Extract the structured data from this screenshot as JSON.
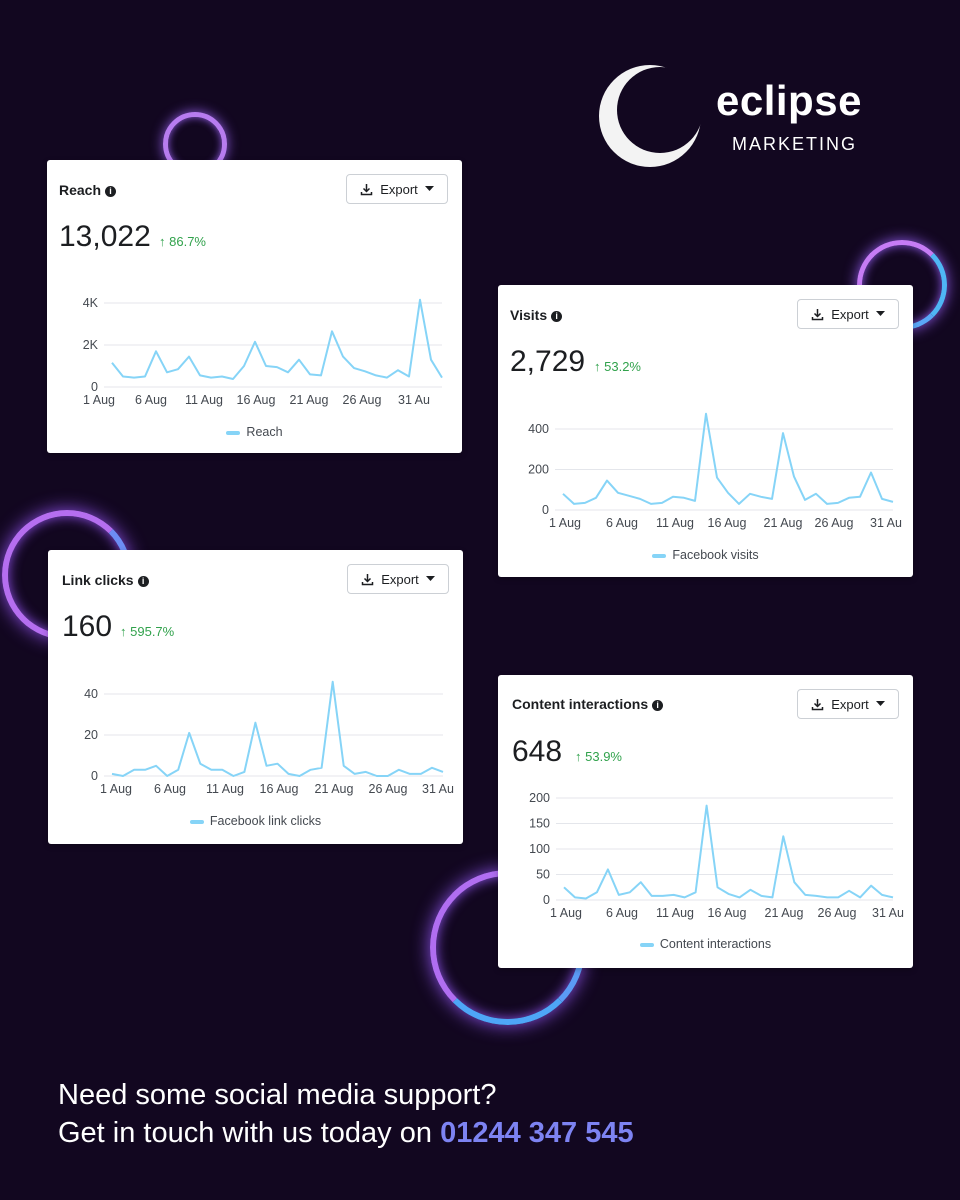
{
  "brand": {
    "name": "eclipse",
    "tagline": "MARKETING"
  },
  "export_label": "Export",
  "colors": {
    "line": "#86d4f7",
    "positive": "#31a24c",
    "phone": "#7d83f2",
    "background": "#120720"
  },
  "x_ticks": [
    "1 Aug",
    "6 Aug",
    "11 Aug",
    "16 Aug",
    "21 Aug",
    "26 Aug",
    "31 Au"
  ],
  "cards": {
    "reach": {
      "title": "Reach",
      "value": "13,022",
      "delta": "86.7%",
      "legend": "Reach"
    },
    "visits": {
      "title": "Visits",
      "value": "2,729",
      "delta": "53.2%",
      "legend": "Facebook visits"
    },
    "link_clicks": {
      "title": "Link clicks",
      "value": "160",
      "delta": "595.7%",
      "legend": "Facebook link clicks"
    },
    "content_interactions": {
      "title": "Content interactions",
      "value": "648",
      "delta": "53.9%",
      "legend": "Content interactions"
    }
  },
  "cta": {
    "line1": "Need some social media support?",
    "line2_prefix": "Get in touch with us today on ",
    "phone": "01244 347 545"
  },
  "chart_data": [
    {
      "type": "line",
      "id": "reach",
      "x": [
        "1 Aug",
        "2 Aug",
        "3 Aug",
        "4 Aug",
        "5 Aug",
        "6 Aug",
        "7 Aug",
        "8 Aug",
        "9 Aug",
        "10 Aug",
        "11 Aug",
        "12 Aug",
        "13 Aug",
        "14 Aug",
        "15 Aug",
        "16 Aug",
        "17 Aug",
        "18 Aug",
        "19 Aug",
        "20 Aug",
        "21 Aug",
        "22 Aug",
        "23 Aug",
        "24 Aug",
        "25 Aug",
        "26 Aug",
        "27 Aug",
        "28 Aug",
        "29 Aug",
        "30 Aug",
        "31 Aug"
      ],
      "series": [
        {
          "name": "Reach",
          "values": [
            1150,
            500,
            450,
            500,
            1700,
            700,
            850,
            1450,
            550,
            450,
            500,
            380,
            1000,
            2150,
            1000,
            950,
            700,
            1300,
            600,
            550,
            2650,
            1450,
            900,
            750,
            550,
            450,
            800,
            500,
            4150,
            1300,
            450
          ]
        }
      ],
      "yticks": [
        "0",
        "2K",
        "4K"
      ],
      "ylim": [
        0,
        4000
      ]
    },
    {
      "type": "line",
      "id": "visits",
      "x": [
        "1 Aug",
        "2 Aug",
        "3 Aug",
        "4 Aug",
        "5 Aug",
        "6 Aug",
        "7 Aug",
        "8 Aug",
        "9 Aug",
        "10 Aug",
        "11 Aug",
        "12 Aug",
        "13 Aug",
        "14 Aug",
        "15 Aug",
        "16 Aug",
        "17 Aug",
        "18 Aug",
        "19 Aug",
        "20 Aug",
        "21 Aug",
        "22 Aug",
        "23 Aug",
        "24 Aug",
        "25 Aug",
        "26 Aug",
        "27 Aug",
        "28 Aug",
        "29 Aug",
        "30 Aug",
        "31 Aug"
      ],
      "series": [
        {
          "name": "Facebook visits",
          "values": [
            80,
            30,
            35,
            60,
            145,
            85,
            70,
            55,
            30,
            35,
            65,
            60,
            45,
            475,
            160,
            85,
            30,
            80,
            65,
            55,
            380,
            165,
            50,
            80,
            30,
            35,
            60,
            65,
            185,
            55,
            40
          ]
        }
      ],
      "yticks": [
        "0",
        "200",
        "400"
      ],
      "ylim": [
        0,
        400
      ]
    },
    {
      "type": "line",
      "id": "link_clicks",
      "x": [
        "1 Aug",
        "2 Aug",
        "3 Aug",
        "4 Aug",
        "5 Aug",
        "6 Aug",
        "7 Aug",
        "8 Aug",
        "9 Aug",
        "10 Aug",
        "11 Aug",
        "12 Aug",
        "13 Aug",
        "14 Aug",
        "15 Aug",
        "16 Aug",
        "17 Aug",
        "18 Aug",
        "19 Aug",
        "20 Aug",
        "21 Aug",
        "22 Aug",
        "23 Aug",
        "24 Aug",
        "25 Aug",
        "26 Aug",
        "27 Aug",
        "28 Aug",
        "29 Aug",
        "30 Aug",
        "31 Aug"
      ],
      "series": [
        {
          "name": "Facebook link clicks",
          "values": [
            1,
            0,
            3,
            3,
            5,
            0,
            3,
            21,
            6,
            3,
            3,
            0,
            2,
            26,
            5,
            6,
            1,
            0,
            3,
            4,
            46,
            5,
            1,
            2,
            0,
            0,
            3,
            1,
            1,
            4,
            2
          ]
        }
      ],
      "yticks": [
        "0",
        "20",
        "40"
      ],
      "ylim": [
        0,
        40
      ]
    },
    {
      "type": "line",
      "id": "content_interactions",
      "x": [
        "1 Aug",
        "2 Aug",
        "3 Aug",
        "4 Aug",
        "5 Aug",
        "6 Aug",
        "7 Aug",
        "8 Aug",
        "9 Aug",
        "10 Aug",
        "11 Aug",
        "12 Aug",
        "13 Aug",
        "14 Aug",
        "15 Aug",
        "16 Aug",
        "17 Aug",
        "18 Aug",
        "19 Aug",
        "20 Aug",
        "21 Aug",
        "22 Aug",
        "23 Aug",
        "24 Aug",
        "25 Aug",
        "26 Aug",
        "27 Aug",
        "28 Aug",
        "29 Aug",
        "30 Aug",
        "31 Aug"
      ],
      "series": [
        {
          "name": "Content interactions",
          "values": [
            25,
            5,
            3,
            15,
            60,
            10,
            15,
            35,
            8,
            8,
            10,
            5,
            15,
            185,
            25,
            12,
            5,
            20,
            8,
            5,
            125,
            35,
            10,
            8,
            5,
            5,
            18,
            5,
            28,
            10,
            5
          ]
        }
      ],
      "yticks": [
        "0",
        "50",
        "100",
        "150",
        "200"
      ],
      "ylim": [
        0,
        200
      ]
    }
  ]
}
